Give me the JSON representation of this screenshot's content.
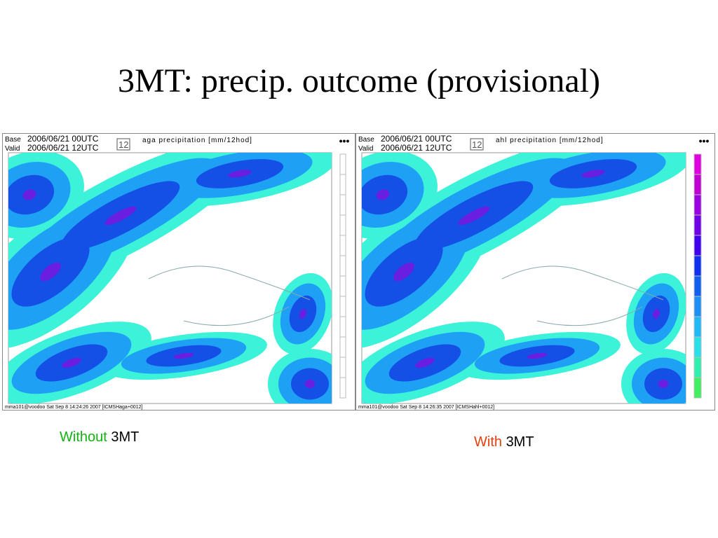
{
  "title": "3MT: precip. outcome (provisional)",
  "panels": [
    {
      "base_label": "Base",
      "base": "2006/06/21 00UTC",
      "valid_label": "Valid",
      "valid": "2006/06/21 12UTC",
      "step": "12",
      "field": "aga precipitation [mm/12hod]",
      "footer": "mma101@voodoo Sat Sep  8 14:24:26 2007 [ICMSHaga+0012]"
    },
    {
      "base_label": "Base",
      "base": "2006/06/21 00UTC",
      "valid_label": "Valid",
      "valid": "2006/06/21 12UTC",
      "step": "12",
      "field": "ahl precipitation [mm/12hod]",
      "footer": "mma101@voodoo Sat Sep  8 14:26:35 2007 [ICMSHahl+0012]"
    }
  ],
  "captions": [
    {
      "prefix": "Without",
      "suffix": "3MT"
    },
    {
      "prefix": "With",
      "suffix": "3MT"
    }
  ]
}
